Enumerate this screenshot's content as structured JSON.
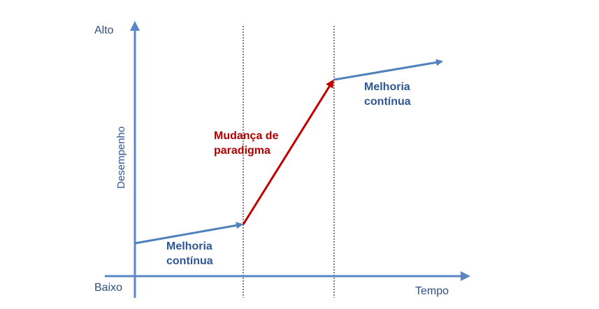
{
  "y_axis": {
    "top_label": "Alto",
    "bottom_label": "Baixo",
    "title": "Desempenho"
  },
  "x_axis": {
    "title": "Tempo"
  },
  "phases": {
    "first": {
      "line1": "Melhoria",
      "line2": "contínua"
    },
    "shift": {
      "line1": "Mudança de",
      "line2": "paradigma"
    },
    "second": {
      "line1": "Melhoria",
      "line2": "contínua"
    }
  },
  "colors": {
    "axis": "#5b87c5",
    "continuous_improvement": "#4f81bd",
    "paradigm_shift": "#c00000",
    "divider": "#000000"
  }
}
